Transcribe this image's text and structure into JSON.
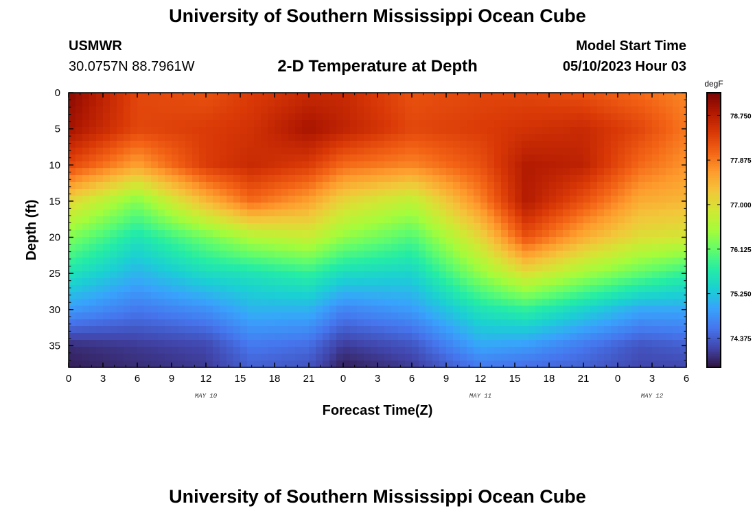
{
  "page": {
    "title": "University of Southern Mississippi Ocean Cube",
    "footer_title": "University of Southern Mississippi Ocean Cube",
    "station": "USMWR",
    "coordinates": "30.0757N  88.7961W",
    "subtitle": "2-D Temperature at Depth",
    "model_label": "Model Start Time",
    "model_time": "05/10/2023 Hour 03"
  },
  "colors": {
    "colormap": [
      "#30123b",
      "#4145ab",
      "#4675ed",
      "#39a2fc",
      "#1bcfd4",
      "#24eca6",
      "#61fc6c",
      "#a4fc3b",
      "#d1e834",
      "#f3c63a",
      "#fe9b2d",
      "#f36315",
      "#d93806",
      "#b11901",
      "#7a0403"
    ]
  },
  "chart_data": {
    "type": "heatmap",
    "title": "2-D Temperature at Depth",
    "xlabel": "Forecast Time(Z)",
    "ylabel": "Depth (ft)",
    "xlim": [
      0,
      54
    ],
    "ylim": [
      38,
      0
    ],
    "x_ticks": [
      0,
      3,
      6,
      9,
      12,
      15,
      18,
      21,
      24,
      27,
      30,
      33,
      36,
      39,
      42,
      45,
      48,
      51,
      54
    ],
    "x_tick_labels": [
      "0",
      "3",
      "6",
      "9",
      "12",
      "15",
      "18",
      "21",
      "0",
      "3",
      "6",
      "9",
      "12",
      "15",
      "18",
      "21",
      "0",
      "3",
      "6"
    ],
    "y_ticks": [
      0,
      5,
      10,
      15,
      20,
      25,
      30,
      35
    ],
    "y_tick_labels": [
      "0",
      "5",
      "10",
      "15",
      "20",
      "25",
      "30",
      "35"
    ],
    "date_labels": [
      {
        "x": 12,
        "label": "MAY 10"
      },
      {
        "x": 36,
        "label": "MAY 11"
      },
      {
        "x": 51,
        "label": "MAY 12"
      }
    ],
    "colorbar": {
      "unit": "degF",
      "min": 73.8,
      "max": 79.2,
      "ticks": [
        74.375,
        75.25,
        76.125,
        77.0,
        77.875,
        78.75
      ],
      "tick_labels": [
        "74.375",
        "75.250",
        "76.125",
        "77.000",
        "77.875",
        "78.750"
      ]
    },
    "sample_hours": [
      0,
      6,
      12,
      16,
      21,
      24,
      30,
      36,
      40,
      45,
      50,
      54
    ],
    "depths": [
      0,
      5,
      10,
      15,
      20,
      25,
      30,
      35,
      38
    ],
    "temperature": [
      [
        79.1,
        78.9,
        78.3,
        77.1,
        76.3,
        75.6,
        74.9,
        74.0,
        73.9
      ],
      [
        78.3,
        78.3,
        77.6,
        76.3,
        75.6,
        75.1,
        74.6,
        74.1,
        74.0
      ],
      [
        78.2,
        78.4,
        78.4,
        77.4,
        76.2,
        75.5,
        74.8,
        74.2,
        74.1
      ],
      [
        78.4,
        78.5,
        78.6,
        78.0,
        76.6,
        75.6,
        75.1,
        74.6,
        74.4
      ],
      [
        78.6,
        78.9,
        78.4,
        77.6,
        76.8,
        75.8,
        75.1,
        74.5,
        74.3
      ],
      [
        78.6,
        78.7,
        78.0,
        77.1,
        76.4,
        75.5,
        74.7,
        74.1,
        73.9
      ],
      [
        78.2,
        78.3,
        77.8,
        76.7,
        76.0,
        75.4,
        74.9,
        74.3,
        74.1
      ],
      [
        78.3,
        78.4,
        78.2,
        77.8,
        77.1,
        76.4,
        75.6,
        75.0,
        74.6
      ],
      [
        78.3,
        78.5,
        78.8,
        78.8,
        78.2,
        77.0,
        75.8,
        74.9,
        74.5
      ],
      [
        78.2,
        78.6,
        78.7,
        78.2,
        77.5,
        76.5,
        75.4,
        74.6,
        74.4
      ],
      [
        78.0,
        78.3,
        78.0,
        77.5,
        77.0,
        76.1,
        75.0,
        74.3,
        74.2
      ],
      [
        77.8,
        77.9,
        77.7,
        77.4,
        76.9,
        75.8,
        75.0,
        74.4,
        74.2
      ]
    ]
  }
}
